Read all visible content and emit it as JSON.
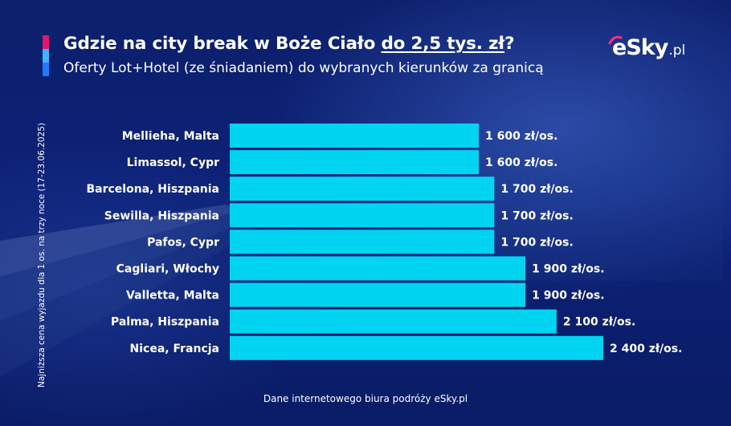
{
  "header": {
    "title_main": "Gdzie na city break w Boże Ciało ",
    "title_underlined": "do 2,5 tys. zł",
    "title_end": "?",
    "subtitle": "Oferty Lot+Hotel (ze śniadaniem) do wybranych kierunków za granicą"
  },
  "logo": {
    "e": "e",
    "sky": "Sky",
    "pl": ".pl"
  },
  "colors": {
    "accent_pink": "#e5146e",
    "accent_lightblue": "#3fb3ff",
    "accent_blue": "#1f7aff",
    "bar": "#00d4f0",
    "background": "#0c1f6c"
  },
  "footer": {
    "source": "Dane internetowego biura podróży eSky.pl"
  },
  "chart_data": {
    "type": "bar",
    "orientation": "horizontal",
    "title": "Gdzie na city break w Boże Ciało do 2,5 tys. zł?",
    "subtitle": "Oferty Lot+Hotel (ze śniadaniem) do wybranych kierunków za granicą",
    "ylabel": "Najniższa cena wyjazdu dla 1 os. na trzy noce (17-23.06.2025)",
    "categories": [
      "Mellieha, Malta",
      "Limassol, Cypr",
      "Barcelona, Hiszpania",
      "Sewilla, Hiszpania",
      "Pafos, Cypr",
      "Cagliari, Włochy",
      "Valletta, Malta",
      "Palma, Hiszpania",
      "Nicea, Francja"
    ],
    "values": [
      1600,
      1600,
      1700,
      1700,
      1700,
      1900,
      1900,
      2100,
      2400
    ],
    "value_labels": [
      "1 600 zł/os.",
      "1 600 zł/os.",
      "1 700 zł/os.",
      "1 700 zł/os.",
      "1 700 zł/os.",
      "1 900 zł/os.",
      "1 900 zł/os.",
      "2 100 zł/os.",
      "2 400 zł/os."
    ],
    "xlim": [
      0,
      2400
    ],
    "grid": false,
    "legend": "none"
  }
}
